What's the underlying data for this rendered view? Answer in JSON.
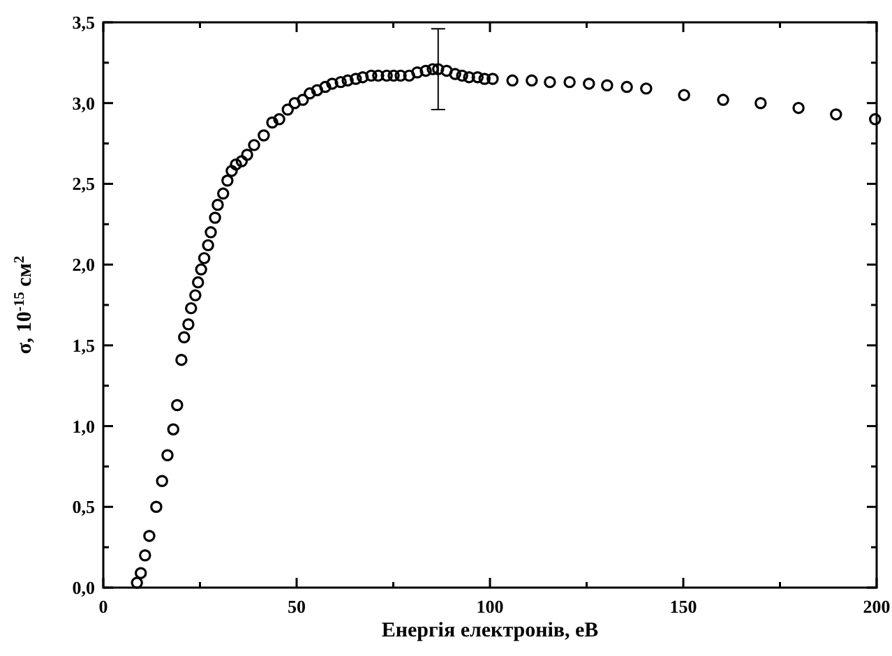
{
  "chart_data": {
    "type": "scatter",
    "xlabel": "Енергія електронів, еВ",
    "ylabel": "σ, 10$^{-15}$ см$^{2}$",
    "xlim": [
      0,
      200
    ],
    "ylim": [
      0,
      3.5
    ],
    "xticks": [
      0,
      {
        "value": 25,
        "label": null
      },
      50,
      {
        "value": 75,
        "label": null
      },
      100,
      {
        "value": 125,
        "label": null
      },
      150,
      {
        "value": 175,
        "label": null
      },
      200
    ],
    "yticks": [
      {
        "value": 0,
        "label": "0,0"
      },
      {
        "value": 0.25,
        "label": null
      },
      {
        "value": 0.5,
        "label": "0,5"
      },
      {
        "value": 0.75,
        "label": null
      },
      {
        "value": 1,
        "label": "1,0"
      },
      {
        "value": 1.25,
        "label": null
      },
      {
        "value": 1.5,
        "label": "1,5"
      },
      {
        "value": 1.75,
        "label": null
      },
      {
        "value": 2,
        "label": "2,0"
      },
      {
        "value": 2.25,
        "label": null
      },
      {
        "value": 2.5,
        "label": "2,5"
      },
      {
        "value": 2.75,
        "label": null
      },
      {
        "value": 3,
        "label": "3,0"
      },
      {
        "value": 3.25,
        "label": null
      },
      {
        "value": 3.5,
        "label": "3,5"
      }
    ],
    "marker": "circle",
    "grid": false,
    "x": [
      8.7,
      9.7,
      10.8,
      11.9,
      13.7,
      15.2,
      16.6,
      18.1,
      19.1,
      20.2,
      20.9,
      22.0,
      22.7,
      23.8,
      24.5,
      25.3,
      26.1,
      27.1,
      27.8,
      28.9,
      29.6,
      31.0,
      32.1,
      33.2,
      34.3,
      35.8,
      37.2,
      39.0,
      41.5,
      43.7,
      45.5,
      47.7,
      49.5,
      51.6,
      53.4,
      55.3,
      57.4,
      59.2,
      61.4,
      63.2,
      65.3,
      67.1,
      69.3,
      71.1,
      73.3,
      75.1,
      76.9,
      79.1,
      81.2,
      83.4,
      85.2,
      86.6,
      88.8,
      91.0,
      92.8,
      94.6,
      96.8,
      98.6,
      100.7,
      105.8,
      110.8,
      115.5,
      120.6,
      125.6,
      130.3,
      135.4,
      140.4,
      150.2,
      160.3,
      170.0,
      179.8,
      189.5,
      199.6
    ],
    "series": [
      {
        "color": "#000000",
        "values": [
          0.03,
          0.09,
          0.2,
          0.32,
          0.5,
          0.66,
          0.82,
          0.98,
          1.13,
          1.41,
          1.55,
          1.63,
          1.73,
          1.81,
          1.89,
          1.97,
          2.04,
          2.12,
          2.2,
          2.29,
          2.37,
          2.44,
          2.52,
          2.58,
          2.62,
          2.64,
          2.68,
          2.74,
          2.8,
          2.88,
          2.9,
          2.96,
          3.0,
          3.02,
          3.06,
          3.08,
          3.1,
          3.12,
          3.13,
          3.14,
          3.15,
          3.16,
          3.17,
          3.17,
          3.17,
          3.17,
          3.17,
          3.17,
          3.19,
          3.2,
          3.21,
          3.21,
          3.2,
          3.18,
          3.17,
          3.16,
          3.16,
          3.15,
          3.15,
          3.14,
          3.14,
          3.13,
          3.13,
          3.12,
          3.11,
          3.1,
          3.09,
          3.05,
          3.02,
          3.0,
          2.97,
          2.93,
          2.9
        ],
        "errors": [
          null,
          null,
          null,
          null,
          null,
          null,
          null,
          null,
          null,
          null,
          null,
          null,
          null,
          null,
          null,
          null,
          null,
          null,
          null,
          null,
          null,
          null,
          null,
          null,
          null,
          null,
          null,
          null,
          null,
          null,
          null,
          null,
          null,
          null,
          null,
          null,
          null,
          null,
          null,
          null,
          null,
          null,
          null,
          null,
          null,
          null,
          null,
          null,
          null,
          null,
          null,
          0.25,
          null,
          null,
          null,
          null,
          null,
          null,
          null,
          null,
          null,
          null,
          null,
          null,
          null,
          null,
          null,
          null,
          null,
          null,
          null,
          null,
          null
        ]
      }
    ]
  }
}
